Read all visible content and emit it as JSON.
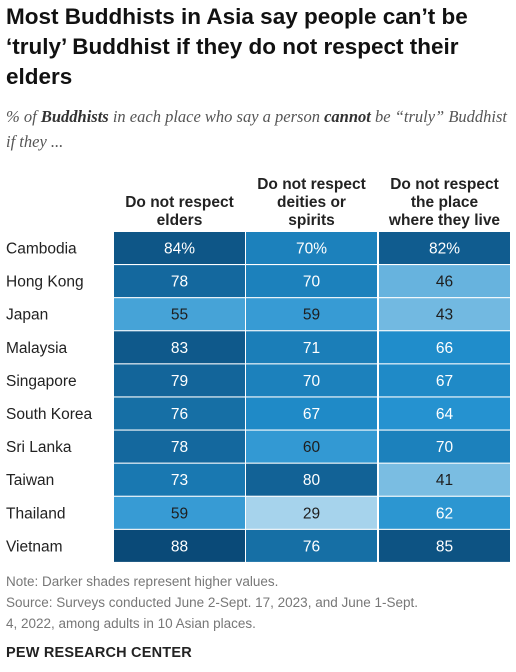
{
  "chart_title": "Most Buddhists in Asia say people can’t be ‘truly’ Buddhist if they do not respect their elders",
  "subtitle": {
    "p1": "% of ",
    "b1": "Buddhists",
    "p2": " in each place who say a person ",
    "b2": "cannot",
    "p3": " be “truly” Buddhist if they ..."
  },
  "chart_data": {
    "type": "table",
    "columns": [
      [
        "Do not respect",
        "elders"
      ],
      [
        "Do not respect",
        "deities or",
        "spirits"
      ],
      [
        "Do not respect",
        "the place",
        "where they live"
      ]
    ],
    "rows": [
      {
        "place": "Cambodia",
        "values": [
          84,
          70,
          82
        ],
        "labels": [
          "84%",
          "70%",
          "82%"
        ]
      },
      {
        "place": "Hong Kong",
        "values": [
          78,
          70,
          46
        ],
        "labels": [
          "78",
          "70",
          "46"
        ]
      },
      {
        "place": "Japan",
        "values": [
          55,
          59,
          43
        ],
        "labels": [
          "55",
          "59",
          "43"
        ]
      },
      {
        "place": "Malaysia",
        "values": [
          83,
          71,
          66
        ],
        "labels": [
          "83",
          "71",
          "66"
        ]
      },
      {
        "place": "Singapore",
        "values": [
          79,
          70,
          67
        ],
        "labels": [
          "79",
          "70",
          "67"
        ]
      },
      {
        "place": "South Korea",
        "values": [
          76,
          67,
          64
        ],
        "labels": [
          "76",
          "67",
          "64"
        ]
      },
      {
        "place": "Sri Lanka",
        "values": [
          78,
          60,
          70
        ],
        "labels": [
          "78",
          "60",
          "70"
        ]
      },
      {
        "place": "Taiwan",
        "values": [
          73,
          80,
          41
        ],
        "labels": [
          "73",
          "80",
          "41"
        ]
      },
      {
        "place": "Thailand",
        "values": [
          59,
          29,
          62
        ],
        "labels": [
          "59",
          "29",
          "62"
        ]
      },
      {
        "place": "Vietnam",
        "values": [
          88,
          76,
          85
        ],
        "labels": [
          "88",
          "76",
          "85"
        ]
      }
    ],
    "color_scale": {
      "light": "#a6d3ec",
      "mid": "#2190cf",
      "dark": "#0a4a78"
    },
    "text_color_on_cell": "#ffffff",
    "text_color_on_light_cell": "#1e1e1e"
  },
  "note": "Note: Darker shades represent higher values.",
  "source_line1": "Source: Surveys conducted June 2-Sept. 17, 2023, and June 1-Sept.",
  "source_line2": "4, 2022, among adults in 10 Asian places.",
  "logo_text": "PEW RESEARCH CENTER"
}
